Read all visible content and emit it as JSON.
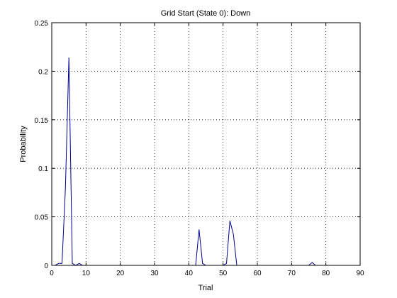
{
  "chart_data": {
    "type": "line",
    "title": "Grid Start (State 0): Down",
    "xlabel": "Trial",
    "ylabel": "Probability",
    "xlim": [
      0,
      90
    ],
    "ylim": [
      0,
      0.25
    ],
    "xticks": [
      "0",
      "10",
      "20",
      "30",
      "40",
      "50",
      "60",
      "70",
      "80",
      "90"
    ],
    "yticks": [
      "0",
      "0.05",
      "0.1",
      "0.15",
      "0.2",
      "0.25"
    ],
    "grid": true,
    "series": [
      {
        "color": "#00008b",
        "x": [
          0,
          1,
          2,
          3,
          4,
          5,
          6,
          7,
          8,
          9,
          10,
          20,
          30,
          40,
          42,
          43,
          44,
          45,
          50,
          51,
          52,
          53,
          54,
          60,
          70,
          75,
          76,
          77,
          80,
          82
        ],
        "y": [
          0,
          0,
          0.002,
          0.002,
          0.08,
          0.214,
          0.002,
          0,
          0.002,
          0,
          0,
          0,
          0,
          0,
          0,
          0.037,
          0.002,
          0,
          0,
          0.002,
          0.046,
          0.032,
          0,
          0,
          0,
          0,
          0.003,
          0,
          0,
          0
        ]
      }
    ]
  }
}
